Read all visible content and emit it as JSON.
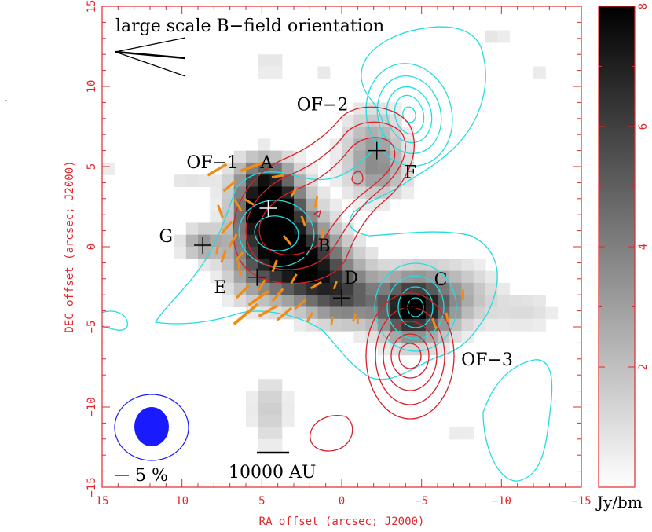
{
  "chart_data": {
    "type": "contour",
    "xlabel": "RA offset (arcsec; J2000)",
    "ylabel": "DEC offset (arcsec; J2000)",
    "xlim": [
      15,
      -15
    ],
    "ylim": [
      -15,
      15
    ],
    "x_ticks": [
      15,
      10,
      5,
      0,
      -5,
      -10,
      -15
    ],
    "x_tick_labels": [
      "15",
      "10",
      "5",
      "0",
      "−5",
      "−10",
      "−15"
    ],
    "y_ticks": [
      15,
      10,
      5,
      0,
      -5,
      -10,
      -15
    ],
    "y_tick_labels": [
      "15",
      "10",
      "5",
      "0",
      "−5",
      "−10",
      "−15"
    ],
    "colorbar": {
      "unit": "Jy/bm",
      "range": [
        0,
        8
      ],
      "ticks": [
        2,
        4,
        6,
        8
      ],
      "tick_labels": [
        "2",
        "4",
        "6",
        "8"
      ]
    },
    "sources": [
      {
        "name": "A",
        "x": 4.6,
        "y": 2.4
      },
      {
        "name": "B",
        "x": 2.3,
        "y": -0.6
      },
      {
        "name": "C",
        "x": -4.3,
        "y": -3.8
      },
      {
        "name": "D",
        "x": 0.0,
        "y": -3.2
      },
      {
        "name": "E",
        "x": 5.3,
        "y": -1.9
      },
      {
        "name": "F",
        "x": -2.2,
        "y": 6.0
      },
      {
        "name": "G",
        "x": 8.7,
        "y": 0.1
      }
    ],
    "source_label_offsets": {},
    "annotations": [
      {
        "text": "OF−1",
        "x": 8.1,
        "y": 4.9
      },
      {
        "text": "OF−2",
        "x": 1.2,
        "y": 8.5
      },
      {
        "text": "OF−3",
        "x": -9.1,
        "y": -7.4
      }
    ],
    "bfield_title": "large scale B−field orientation",
    "scalebar_label": "10000 AU",
    "polarization_scale_label": "5 %",
    "colors": {
      "axes": "#e0282c",
      "cyan_contours": "#22dde0",
      "red_contours": "#d6202a",
      "vectors": "#f08c12",
      "beam": "#1a1aff"
    }
  }
}
